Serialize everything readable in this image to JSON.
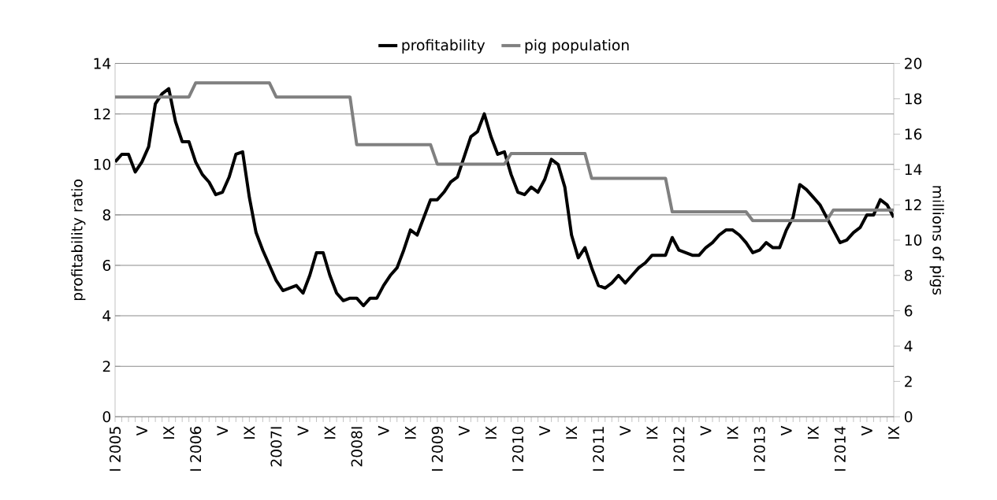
{
  "chart_data": {
    "type": "line",
    "categories": [
      "I 2005",
      null,
      null,
      null,
      "V",
      null,
      null,
      null,
      "IX",
      null,
      null,
      null,
      "I 2006",
      null,
      null,
      null,
      "V",
      null,
      null,
      null,
      "IX",
      null,
      null,
      null,
      "2007I",
      null,
      null,
      null,
      "V",
      null,
      null,
      null,
      "IX",
      null,
      null,
      null,
      "2008I",
      null,
      null,
      null,
      "V",
      null,
      null,
      null,
      "IX",
      null,
      null,
      null,
      "I 2009",
      null,
      null,
      null,
      "V",
      null,
      null,
      null,
      "IX",
      null,
      null,
      null,
      "I 2010",
      null,
      null,
      null,
      "V",
      null,
      null,
      null,
      "IX",
      null,
      null,
      null,
      "I 2011",
      null,
      null,
      null,
      "V",
      null,
      null,
      null,
      "IX",
      null,
      null,
      null,
      "I 2012",
      null,
      null,
      null,
      "V",
      null,
      null,
      null,
      "IX",
      null,
      null,
      null,
      "I 2013",
      null,
      null,
      null,
      "V",
      null,
      null,
      null,
      "IX",
      null,
      null,
      null,
      "I 2014",
      null,
      null,
      null,
      "V",
      null,
      null,
      null,
      "IX"
    ],
    "series": [
      {
        "name": "profitability",
        "color": "#000000",
        "values": [
          10.1,
          10.4,
          10.4,
          9.7,
          10.1,
          10.7,
          12.4,
          12.8,
          13.0,
          11.7,
          10.9,
          10.9,
          10.1,
          9.6,
          9.3,
          8.8,
          8.9,
          9.5,
          10.4,
          10.5,
          8.7,
          7.3,
          6.6,
          6.0,
          5.4,
          5.0,
          5.1,
          5.2,
          4.9,
          5.6,
          6.5,
          6.5,
          5.6,
          4.9,
          4.6,
          4.7,
          4.7,
          4.4,
          4.7,
          4.7,
          5.2,
          5.6,
          5.9,
          6.6,
          7.4,
          7.2,
          7.9,
          8.6,
          8.6,
          8.9,
          9.3,
          9.5,
          10.3,
          11.1,
          11.3,
          12.0,
          11.1,
          10.4,
          10.5,
          9.6,
          8.9,
          8.8,
          9.1,
          8.9,
          9.4,
          10.2,
          10.0,
          9.1,
          7.2,
          6.3,
          6.7,
          5.9,
          5.2,
          5.1,
          5.3,
          5.6,
          5.3,
          5.6,
          5.9,
          6.1,
          6.4,
          6.4,
          6.4,
          7.1,
          6.6,
          6.5,
          6.4,
          6.4,
          6.7,
          6.9,
          7.2,
          7.4,
          7.4,
          7.2,
          6.9,
          6.5,
          6.6,
          6.9,
          6.7,
          6.7,
          7.4,
          7.9,
          9.2,
          9.0,
          8.7,
          8.4,
          7.9,
          7.4,
          6.9,
          7.0,
          7.3,
          7.5,
          8.0,
          8.0,
          8.6,
          8.4,
          7.9
        ]
      },
      {
        "name": "pig population",
        "color": "#808080",
        "axis": "y2",
        "values": [
          18.1,
          18.1,
          18.1,
          18.1,
          18.1,
          18.1,
          18.1,
          18.1,
          18.1,
          18.1,
          18.1,
          18.1,
          18.9,
          18.9,
          18.9,
          18.9,
          18.9,
          18.9,
          18.9,
          18.9,
          18.9,
          18.9,
          18.9,
          18.9,
          18.1,
          18.1,
          18.1,
          18.1,
          18.1,
          18.1,
          18.1,
          18.1,
          18.1,
          18.1,
          18.1,
          18.1,
          15.4,
          15.4,
          15.4,
          15.4,
          15.4,
          15.4,
          15.4,
          15.4,
          15.4,
          15.4,
          15.4,
          15.4,
          14.3,
          14.3,
          14.3,
          14.3,
          14.3,
          14.3,
          14.3,
          14.3,
          14.3,
          14.3,
          14.3,
          14.9,
          14.9,
          14.9,
          14.9,
          14.9,
          14.9,
          14.9,
          14.9,
          14.9,
          14.9,
          14.9,
          14.9,
          13.5,
          13.5,
          13.5,
          13.5,
          13.5,
          13.5,
          13.5,
          13.5,
          13.5,
          13.5,
          13.5,
          13.5,
          11.6,
          11.6,
          11.6,
          11.6,
          11.6,
          11.6,
          11.6,
          11.6,
          11.6,
          11.6,
          11.6,
          11.6,
          11.1,
          11.1,
          11.1,
          11.1,
          11.1,
          11.1,
          11.1,
          11.1,
          11.1,
          11.1,
          11.1,
          11.1,
          11.7,
          11.7,
          11.7,
          11.7,
          11.7,
          11.7,
          11.7,
          11.7,
          11.7,
          11.7
        ]
      }
    ],
    "ylabel": "profitability ratio",
    "y2label": "millions of pigs",
    "ylim": [
      0,
      14
    ],
    "yticks": [
      0,
      2,
      4,
      6,
      8,
      10,
      12,
      14
    ],
    "y2lim": [
      0,
      20
    ],
    "y2ticks": [
      0,
      2,
      4,
      6,
      8,
      10,
      12,
      14,
      16,
      18,
      20
    ],
    "grid": "y",
    "legend": "top"
  }
}
